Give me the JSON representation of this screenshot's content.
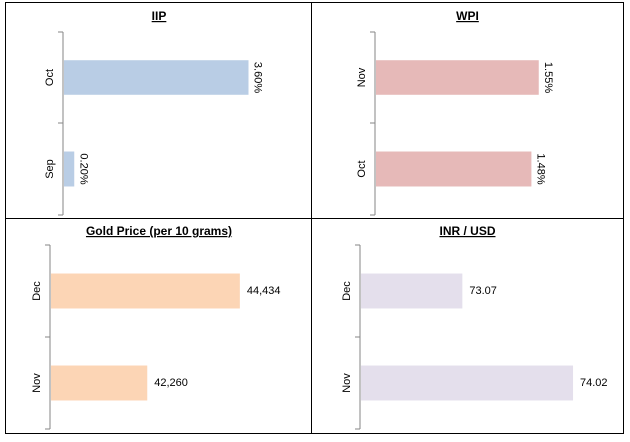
{
  "chart_data": [
    {
      "type": "bar",
      "orientation": "horizontal",
      "title": "IIP",
      "categories": [
        "Oct",
        "Sep"
      ],
      "values": [
        3.6,
        0.2
      ],
      "data_labels": [
        "3.60%",
        "0.20%"
      ],
      "xlim": [
        0,
        4.0
      ],
      "color": "#b9cde5",
      "label_rotation": "vertical"
    },
    {
      "type": "bar",
      "orientation": "horizontal",
      "title": "WPI",
      "categories": [
        "Nov",
        "Oct"
      ],
      "values": [
        1.55,
        1.48
      ],
      "data_labels": [
        "1.55%",
        "1.48%"
      ],
      "xlim": [
        0,
        2.0
      ],
      "color": "#e6b9b8",
      "label_rotation": "vertical"
    },
    {
      "type": "bar",
      "orientation": "horizontal",
      "title": "Gold Price (per 10 grams)",
      "categories": [
        "Dec",
        "Nov"
      ],
      "values": [
        44434,
        42260
      ],
      "data_labels": [
        "44,434",
        "42,260"
      ],
      "xlim": [
        40000,
        45400
      ],
      "color": "#fcd5b5",
      "label_rotation": "horizontal"
    },
    {
      "type": "bar",
      "orientation": "horizontal",
      "title": "INR / USD",
      "categories": [
        "Dec",
        "Nov"
      ],
      "values": [
        73.07,
        74.02
      ],
      "data_labels": [
        "73.07",
        "74.02"
      ],
      "xlim": [
        72.2,
        74.2
      ],
      "color": "#e4dfec",
      "label_rotation": "horizontal"
    }
  ]
}
